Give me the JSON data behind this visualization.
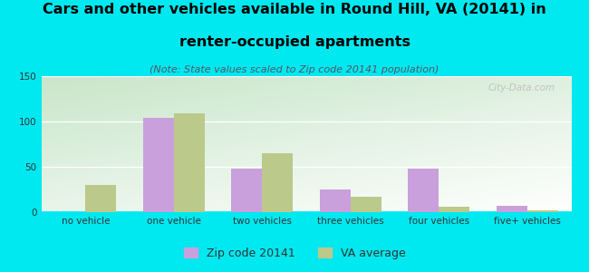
{
  "title_line1": "Cars and other vehicles available in Round Hill, VA (20141) in",
  "title_line2": "renter-occupied apartments",
  "subtitle": "(Note: State values scaled to Zip code 20141 population)",
  "categories": [
    "no vehicle",
    "one vehicle",
    "two vehicles",
    "three vehicles",
    "four vehicles",
    "five+ vehicles"
  ],
  "zip_values": [
    0,
    104,
    48,
    25,
    48,
    7
  ],
  "va_values": [
    30,
    109,
    65,
    17,
    6,
    2
  ],
  "zip_color": "#c9a0dc",
  "va_color": "#bbc98a",
  "background_outer": "#00e8f0",
  "ylim": [
    0,
    150
  ],
  "yticks": [
    0,
    50,
    100,
    150
  ],
  "bar_width": 0.35,
  "legend_zip_label": "Zip code 20141",
  "legend_va_label": "VA average",
  "watermark": "City-Data.com",
  "title_fontsize": 11.5,
  "subtitle_fontsize": 8,
  "tick_fontsize": 7.5,
  "legend_fontsize": 9
}
